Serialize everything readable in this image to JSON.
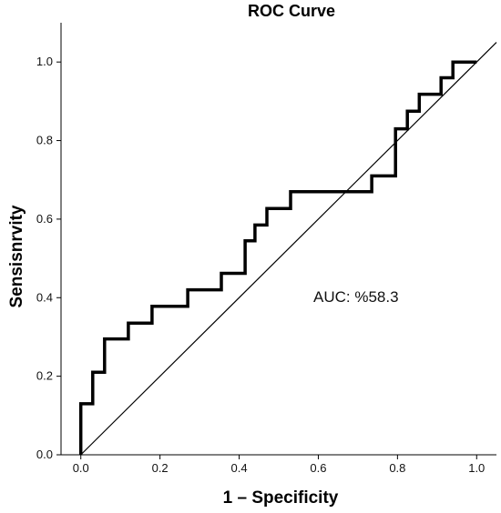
{
  "chart_data": {
    "type": "line",
    "title": "ROC Curve",
    "xlabel": "1 – Specificity",
    "ylabel": "Sensisnrvity",
    "xlim": [
      -0.05,
      1.05
    ],
    "ylim": [
      0,
      1.1
    ],
    "xticks": [
      0.0,
      0.2,
      0.4,
      0.6,
      0.8,
      1.0
    ],
    "yticks": [
      0.0,
      0.2,
      0.4,
      0.6,
      0.8,
      1.0
    ],
    "xtick_labels": [
      "0.0",
      "0.2",
      "0.4",
      "0.6",
      "0.8",
      "1.0"
    ],
    "ytick_labels": [
      "0.0",
      "0.2",
      "0.4",
      "0.6",
      "0.8",
      "1.0"
    ],
    "grid": false,
    "annotation": "AUC: %58.3",
    "series": [
      {
        "style": "step",
        "color": "#000000",
        "x": [
          0.0,
          0.0,
          0.03,
          0.03,
          0.06,
          0.06,
          0.12,
          0.12,
          0.18,
          0.18,
          0.27,
          0.27,
          0.355,
          0.355,
          0.415,
          0.415,
          0.44,
          0.44,
          0.47,
          0.47,
          0.53,
          0.53,
          0.735,
          0.735,
          0.795,
          0.795,
          0.825,
          0.825,
          0.855,
          0.855,
          0.885,
          0.885,
          0.91,
          0.91,
          0.94,
          0.94,
          1.0
        ],
        "y": [
          0.0,
          0.13,
          0.13,
          0.21,
          0.21,
          0.295,
          0.295,
          0.335,
          0.335,
          0.378,
          0.378,
          0.42,
          0.42,
          0.462,
          0.462,
          0.545,
          0.545,
          0.585,
          0.585,
          0.627,
          0.627,
          0.67,
          0.67,
          0.71,
          0.71,
          0.83,
          0.83,
          0.875,
          0.875,
          0.918,
          0.918,
          0.918,
          0.918,
          0.96,
          0.96,
          1.0,
          1.0
        ]
      },
      {
        "style": "reference",
        "color": "#000000",
        "x": [
          0.0,
          1.05
        ],
        "y": [
          0.0,
          1.05
        ]
      }
    ]
  }
}
